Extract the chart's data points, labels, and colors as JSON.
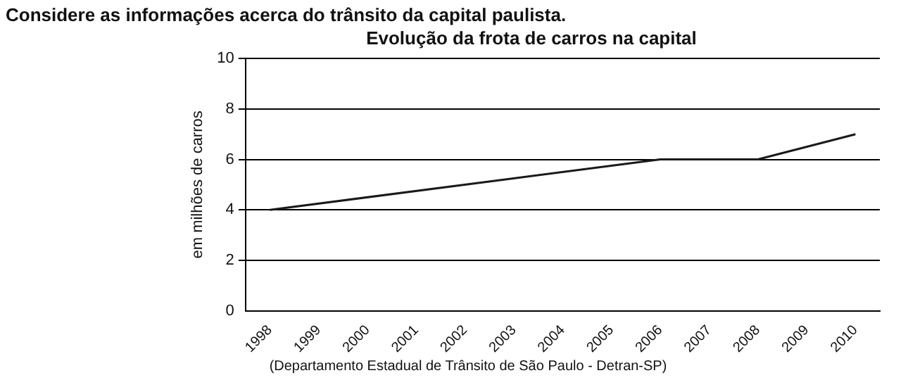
{
  "chart_data": {
    "type": "line",
    "title": "Evolução da frota de carros na capital",
    "ylabel": "em milhões de carros",
    "annotations": [
      "Considere as informações acerca do trânsito da capital paulista.",
      "(Departamento Estadual de Trânsito de São Paulo - Detran-SP)"
    ],
    "categories": [
      "1998",
      "1999",
      "2000",
      "2001",
      "2002",
      "2003",
      "2004",
      "2005",
      "2006",
      "2007",
      "2008",
      "2009",
      "2010"
    ],
    "series": [
      {
        "color": "#1a1a1a",
        "values": [
          4,
          null,
          null,
          null,
          null,
          null,
          null,
          null,
          6,
          null,
          6,
          null,
          7
        ]
      }
    ],
    "ylim": [
      0,
      10
    ],
    "yticks": [
      0,
      2,
      4,
      6,
      8,
      10
    ],
    "grid": "y",
    "legend": false,
    "marker": "none",
    "line_style": "solid"
  }
}
